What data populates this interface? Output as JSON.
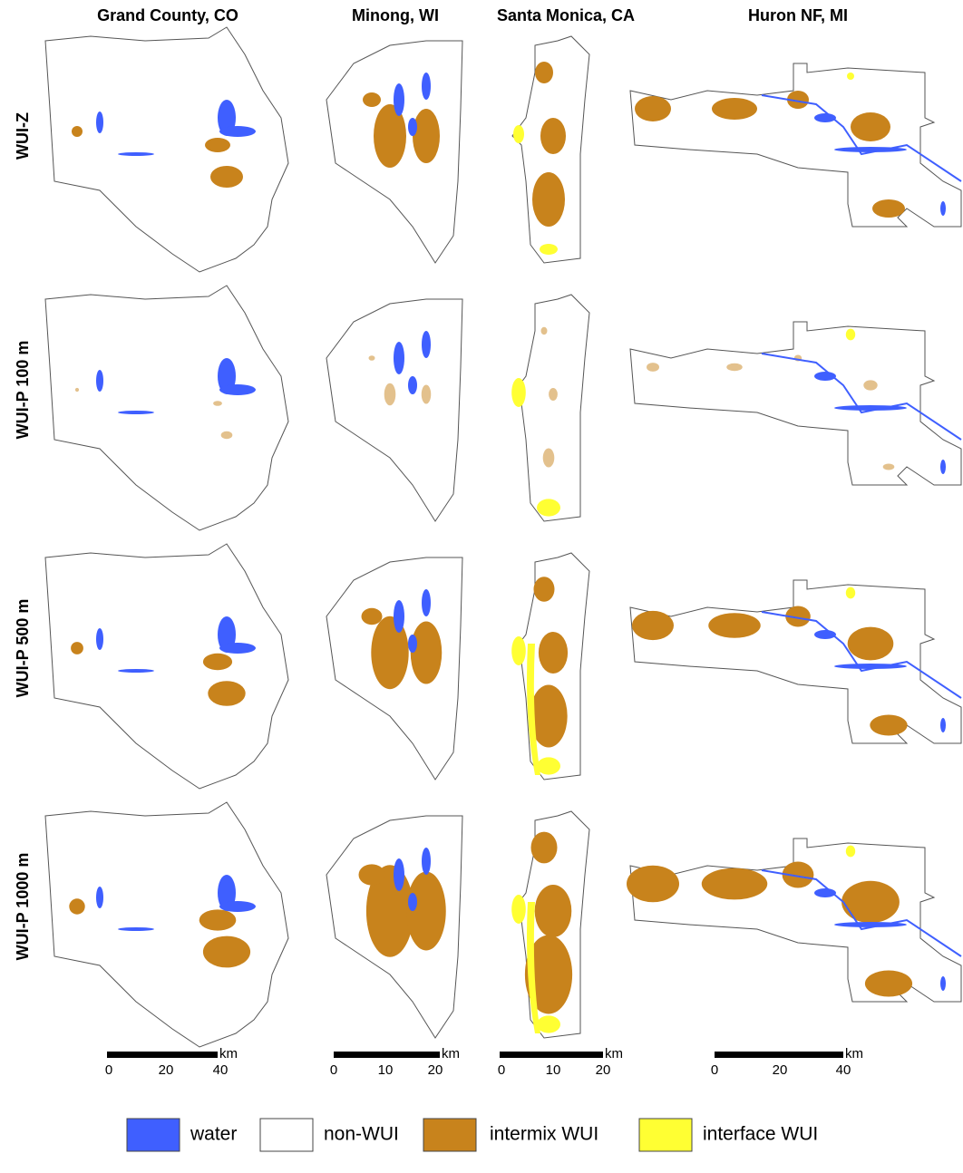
{
  "columns": [
    "Grand County, CO",
    "Minong, WI",
    "Santa Monica, CA",
    "Huron NF, MI"
  ],
  "rows": [
    "WUI-Z",
    "WUI-P 100 m",
    "WUI-P 500 m",
    "WUI-P 1000 m"
  ],
  "scale_bars": [
    {
      "unit": "km",
      "ticks": [
        "0",
        "20",
        "40"
      ]
    },
    {
      "unit": "km",
      "ticks": [
        "0",
        "10",
        "20"
      ]
    },
    {
      "unit": "km",
      "ticks": [
        "0",
        "10",
        "20"
      ]
    },
    {
      "unit": "km",
      "ticks": [
        "0",
        "20",
        "40"
      ]
    }
  ],
  "legend": [
    {
      "label": "water",
      "color": "#3f5fff"
    },
    {
      "label": "non-WUI",
      "color": "#ffffff"
    },
    {
      "label": "intermix WUI",
      "color": "#c8831c"
    },
    {
      "label": "interface WUI",
      "color": "#ffff33"
    }
  ]
}
